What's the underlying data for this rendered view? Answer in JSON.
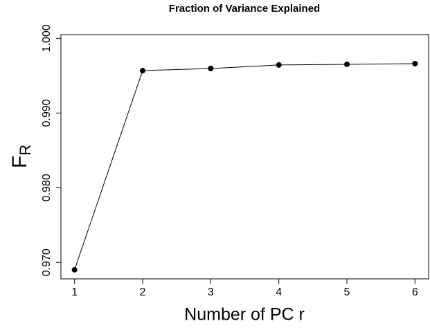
{
  "chart_data": {
    "type": "line",
    "title": "Fraction of Variance Explained",
    "xlabel": "Number of PC r",
    "ylabel": {
      "main": "F",
      "sub": "R"
    },
    "x": [
      1,
      2,
      3,
      4,
      5,
      6
    ],
    "values": [
      0.96902,
      0.99568,
      0.99596,
      0.99643,
      0.99652,
      0.99661
    ],
    "color": "#000000",
    "xlim": [
      0.8,
      6.2
    ],
    "xticks": [
      1,
      2,
      3,
      4,
      5,
      6
    ],
    "ylim": [
      0.9678,
      1.0005
    ],
    "yticks": [
      {
        "value": 0.97,
        "label": "0.970"
      },
      {
        "value": 0.98,
        "label": "0.980"
      },
      {
        "value": 0.99,
        "label": "0.990"
      },
      {
        "value": 1.0,
        "label": "1.000"
      }
    ]
  }
}
